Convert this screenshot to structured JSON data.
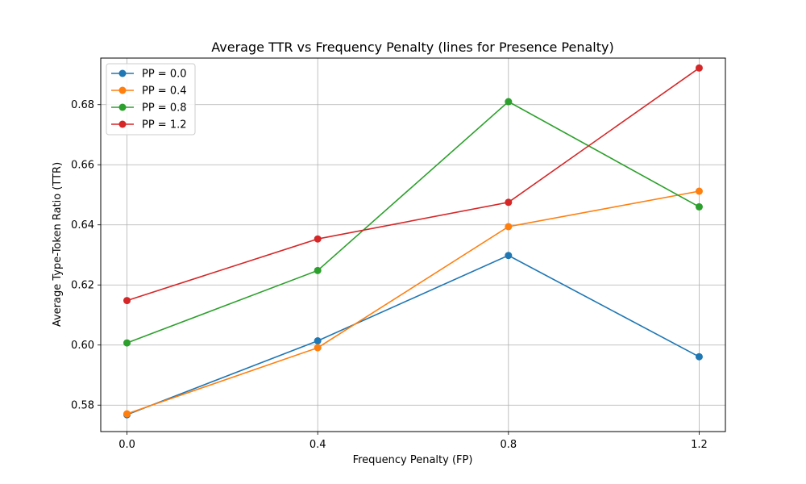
{
  "chart_data": {
    "type": "line",
    "title": "Average TTR vs Frequency Penalty (lines for Presence Penalty)",
    "xlabel": "Frequency Penalty (FP)",
    "ylabel": "Average Type-Token Ratio (TTR)",
    "x": [
      0.0,
      0.4,
      0.8,
      1.2
    ],
    "x_tick_labels": [
      "0.0",
      "0.4",
      "0.8",
      "1.2"
    ],
    "xlim": [
      -0.055,
      1.255
    ],
    "ylim": [
      0.5712,
      0.6955
    ],
    "y_ticks": [
      0.58,
      0.6,
      0.62,
      0.64,
      0.66,
      0.68
    ],
    "y_tick_labels": [
      "0.58",
      "0.60",
      "0.62",
      "0.64",
      "0.66",
      "0.68"
    ],
    "grid": true,
    "legend_position": "top-left",
    "series": [
      {
        "name": "PP = 0.0",
        "color": "#1f77b4",
        "values": [
          0.5768,
          0.6014,
          0.6298,
          0.5961
        ]
      },
      {
        "name": "PP = 0.4",
        "color": "#ff7f0e",
        "values": [
          0.5771,
          0.5991,
          0.6394,
          0.6512
        ]
      },
      {
        "name": "PP = 0.8",
        "color": "#2ca02c",
        "values": [
          0.6007,
          0.6248,
          0.681,
          0.646
        ]
      },
      {
        "name": "PP = 1.2",
        "color": "#d62728",
        "values": [
          0.6148,
          0.6353,
          0.6475,
          0.6922
        ]
      }
    ]
  }
}
